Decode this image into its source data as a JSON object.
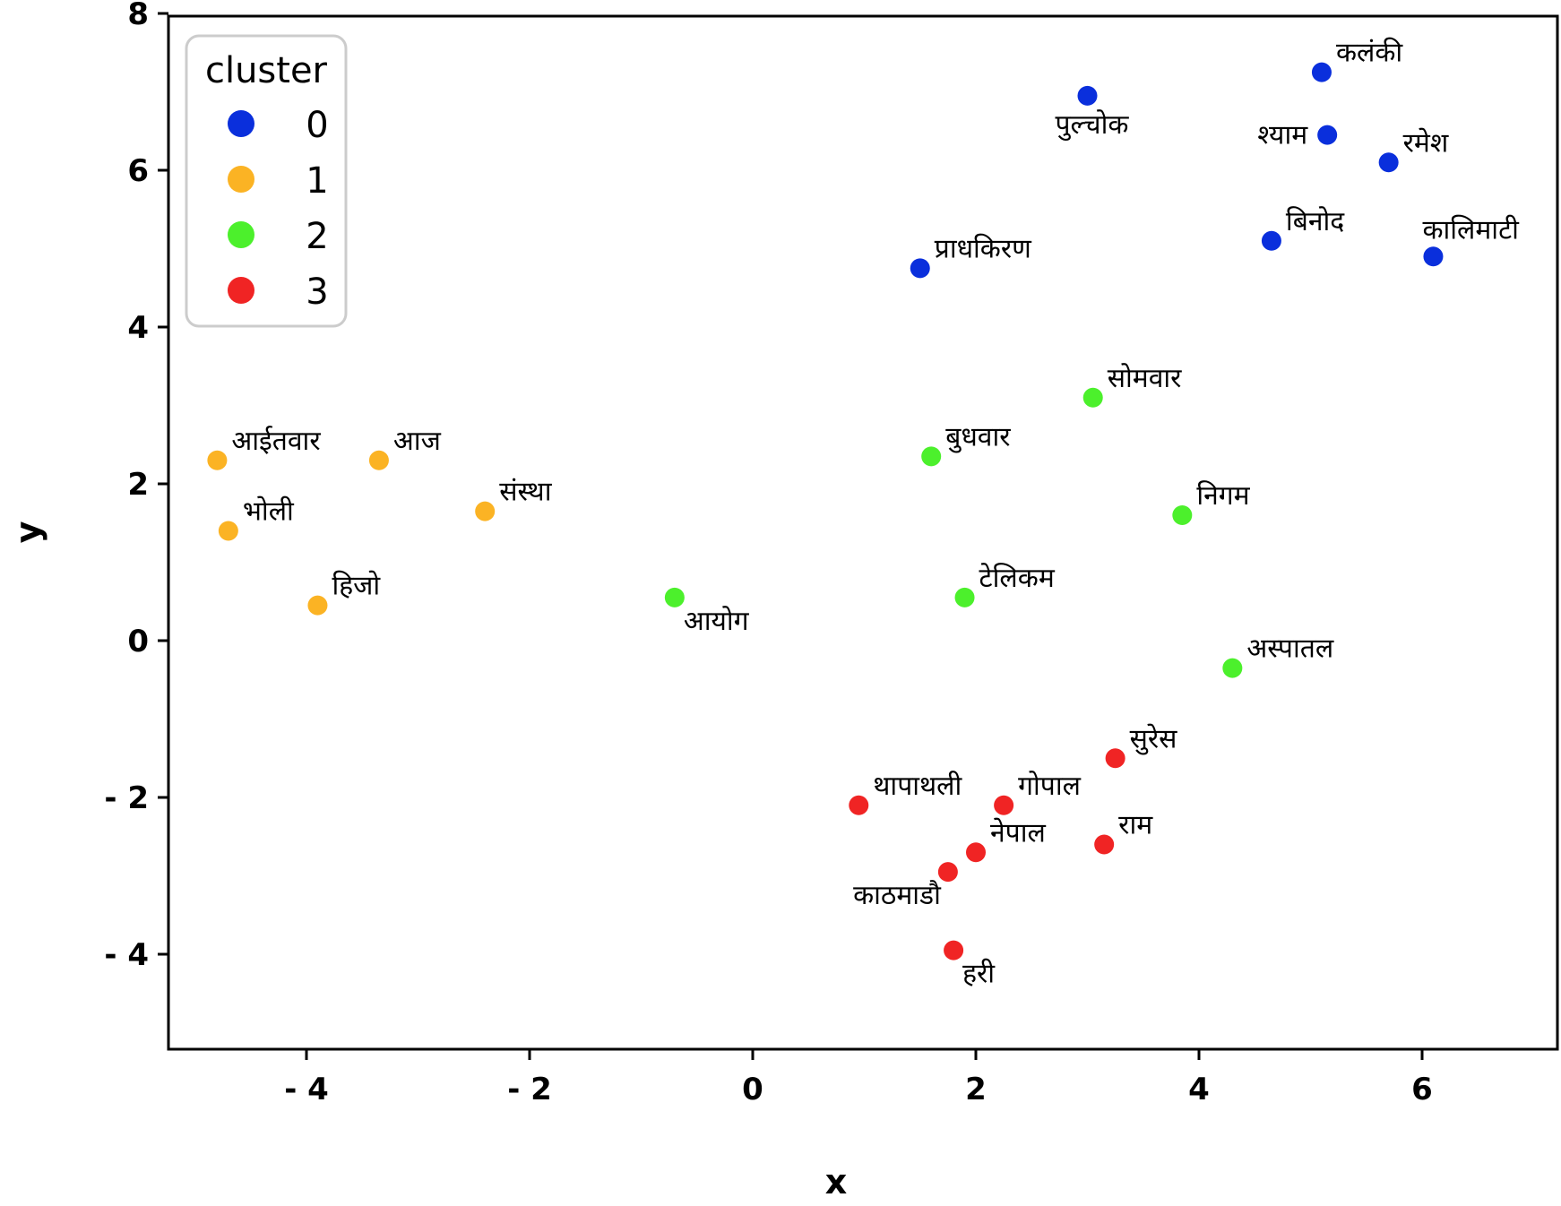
{
  "chart_data": {
    "type": "scatter",
    "title": "",
    "xlabel": "x",
    "ylabel": "y",
    "xlim": [
      -5.2,
      7.3
    ],
    "ylim": [
      -5.0,
      8.0
    ],
    "xticks": [
      -4,
      -2,
      0,
      2,
      4,
      6
    ],
    "yticks": [
      -4,
      -2,
      0,
      2,
      4,
      6,
      8
    ],
    "xtick_labels": [
      "- 4",
      "- 2",
      "0",
      "2",
      "4",
      "6"
    ],
    "ytick_labels": [
      "- 4",
      "- 2",
      "0",
      "2",
      "4",
      "6",
      "8"
    ],
    "grid": false,
    "legend": {
      "title": "cluster",
      "position": "top-left",
      "entries": [
        {
          "label": "0",
          "color": "#0a2fdc"
        },
        {
          "label": "1",
          "color": "#fbb324"
        },
        {
          "label": "2",
          "color": "#4cf02c"
        },
        {
          "label": "3",
          "color": "#f02424"
        }
      ]
    },
    "series": [
      {
        "name": "0",
        "color": "#0a2fdc",
        "points": [
          {
            "x": 5.1,
            "y": 7.25,
            "label": "कलंकी",
            "pos": "ur"
          },
          {
            "x": 3.0,
            "y": 6.95,
            "label": "पुल्चोक",
            "pos": "below"
          },
          {
            "x": 5.15,
            "y": 6.45,
            "label": "श्याम",
            "pos": "left"
          },
          {
            "x": 5.7,
            "y": 6.1,
            "label": "रमेश",
            "pos": "ur"
          },
          {
            "x": 4.65,
            "y": 5.1,
            "label": "बिनोद",
            "pos": "ur"
          },
          {
            "x": 6.1,
            "y": 4.9,
            "label": "कालिमाटी",
            "pos": "above"
          },
          {
            "x": 1.5,
            "y": 4.75,
            "label": "प्राधकिरण",
            "pos": "ur"
          }
        ]
      },
      {
        "name": "1",
        "color": "#fbb324",
        "points": [
          {
            "x": -4.8,
            "y": 2.3,
            "label": "आईतवार",
            "pos": "ur"
          },
          {
            "x": -3.35,
            "y": 2.3,
            "label": "आज",
            "pos": "ur"
          },
          {
            "x": -4.7,
            "y": 1.4,
            "label": "भोली",
            "pos": "ur"
          },
          {
            "x": -2.4,
            "y": 1.65,
            "label": "संस्था",
            "pos": "ur"
          },
          {
            "x": -3.9,
            "y": 0.45,
            "label": "हिजो",
            "pos": "ur"
          }
        ]
      },
      {
        "name": "2",
        "color": "#4cf02c",
        "points": [
          {
            "x": 3.05,
            "y": 3.1,
            "label": "सोमवार",
            "pos": "ur"
          },
          {
            "x": 1.6,
            "y": 2.35,
            "label": "बुधवार",
            "pos": "ur"
          },
          {
            "x": 3.85,
            "y": 1.6,
            "label": "निगम",
            "pos": "ur"
          },
          {
            "x": -0.7,
            "y": 0.55,
            "label": "आयोग",
            "pos": "lr"
          },
          {
            "x": 1.9,
            "y": 0.55,
            "label": "टेलिकम",
            "pos": "ur"
          },
          {
            "x": 4.3,
            "y": -0.35,
            "label": "अस्पातल",
            "pos": "ur"
          }
        ]
      },
      {
        "name": "3",
        "color": "#f02424",
        "points": [
          {
            "x": 3.25,
            "y": -1.5,
            "label": "सुरेस",
            "pos": "ur"
          },
          {
            "x": 0.95,
            "y": -2.1,
            "label": "थापाथली",
            "pos": "ur"
          },
          {
            "x": 2.25,
            "y": -2.1,
            "label": "गोपाल",
            "pos": "ur"
          },
          {
            "x": 3.15,
            "y": -2.6,
            "label": "राम",
            "pos": "ur"
          },
          {
            "x": 2.0,
            "y": -2.7,
            "label": "नेपाल",
            "pos": "ur"
          },
          {
            "x": 1.75,
            "y": -2.95,
            "label": "काठमाडौ",
            "pos": "bl"
          },
          {
            "x": 1.8,
            "y": -3.95,
            "label": "हरी",
            "pos": "lr"
          }
        ]
      }
    ]
  }
}
